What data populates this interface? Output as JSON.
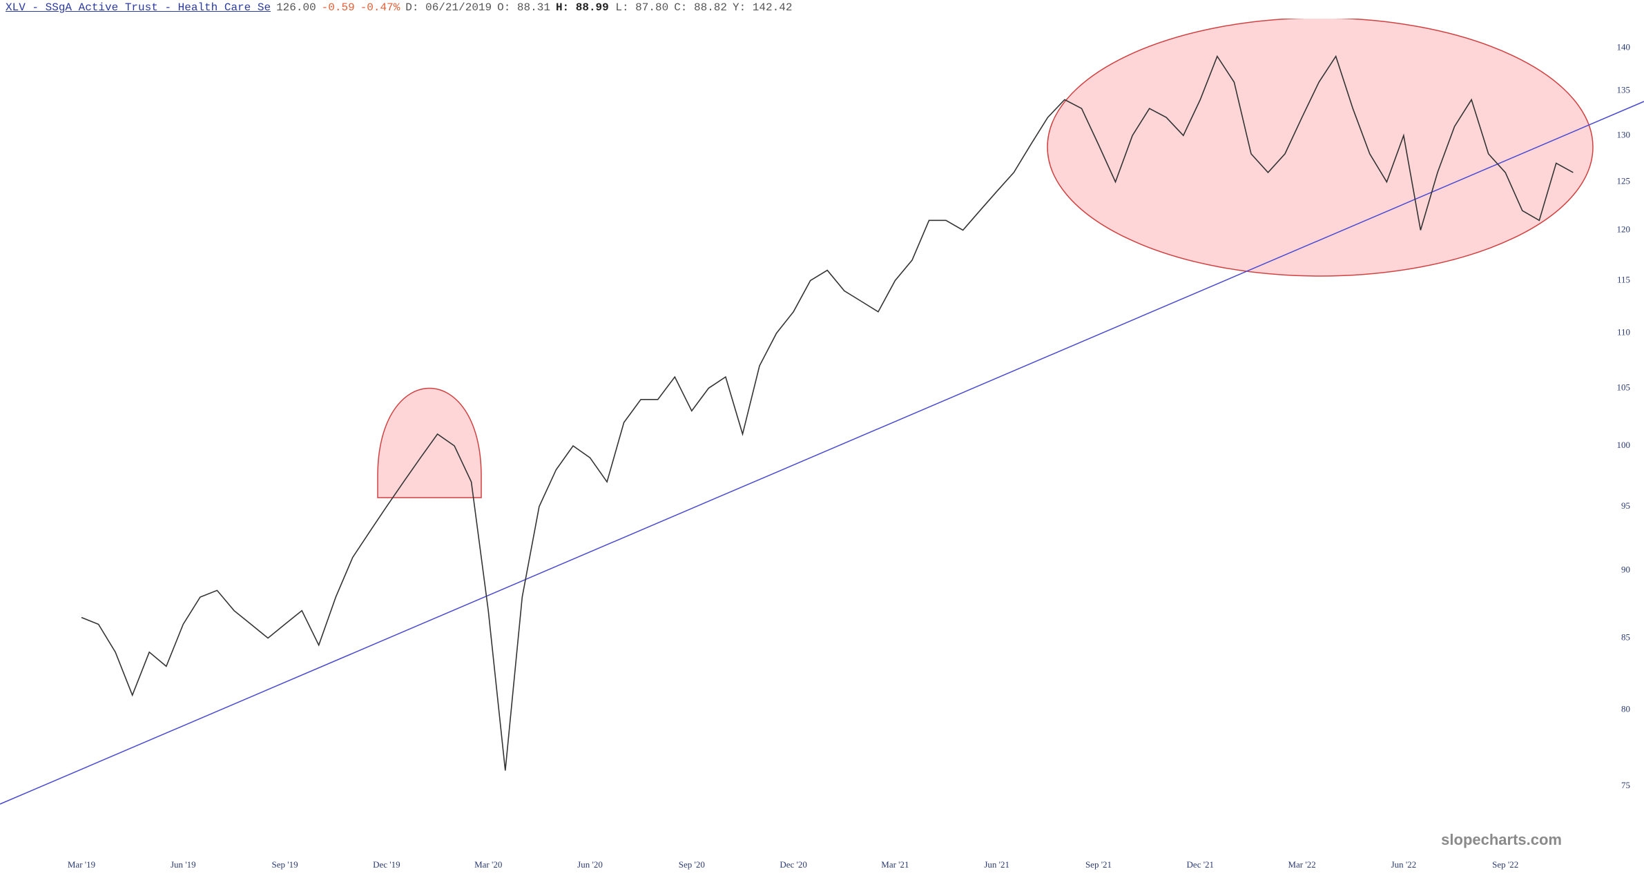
{
  "header": {
    "symbol": "XLV - SSgA Active Trust - Health Care Se",
    "last": "126.00",
    "change": "-0.59",
    "change_pct": "-0.47%",
    "date": "D: 06/21/2019",
    "open": "O:  88.31",
    "high_label": "H:",
    "high": "88.99",
    "low": "L:  87.80",
    "close": "C:  88.82",
    "year_high": "Y: 142.42"
  },
  "chart_data": {
    "type": "line",
    "color": "#333333",
    "log_scale": true,
    "categories": [
      "Mar '19",
      null,
      null,
      null,
      null,
      null,
      "Jun '19",
      null,
      null,
      null,
      null,
      null,
      "Sep '19",
      null,
      null,
      null,
      null,
      null,
      "Dec '19",
      null,
      null,
      null,
      null,
      null,
      "Mar '20",
      null,
      null,
      null,
      null,
      null,
      "Jun '20",
      null,
      null,
      null,
      null,
      null,
      "Sep '20",
      null,
      null,
      null,
      null,
      null,
      "Dec '20",
      null,
      null,
      null,
      null,
      null,
      "Mar '21",
      null,
      null,
      null,
      null,
      null,
      "Jun '21",
      null,
      null,
      null,
      null,
      null,
      "Sep '21",
      null,
      null,
      null,
      null,
      null,
      "Dec '21",
      null,
      null,
      null,
      null,
      null,
      "Mar '22",
      null,
      null,
      null,
      null,
      null,
      "Jun '22",
      null,
      null,
      null,
      null,
      null,
      "Sep '22",
      null,
      null,
      null,
      null
    ],
    "values": [
      86.5,
      86,
      84,
      81,
      84,
      83,
      86,
      88,
      88.5,
      87,
      86,
      85,
      86,
      87,
      84.5,
      88,
      91,
      93,
      95,
      97,
      99,
      101,
      100,
      97,
      87,
      76,
      88,
      95,
      98,
      100,
      99,
      97,
      102,
      104,
      104,
      106,
      103,
      105,
      106,
      101,
      107,
      110,
      112,
      115,
      116,
      114,
      113,
      112,
      115,
      117,
      121,
      121,
      120,
      122,
      124,
      126,
      129,
      132,
      134,
      133,
      129,
      125,
      130,
      133,
      132,
      130,
      134,
      139,
      136,
      128,
      126,
      128,
      132,
      136,
      139,
      133,
      128,
      125,
      130,
      120,
      126,
      131,
      134,
      128,
      126,
      122,
      121,
      127,
      126
    ],
    "ylim": [
      71,
      143.5
    ],
    "yticks": [
      75,
      80,
      85,
      90,
      95,
      100,
      105,
      110,
      115,
      120,
      125,
      130,
      135,
      140
    ],
    "watermark": "slopecharts.com"
  }
}
